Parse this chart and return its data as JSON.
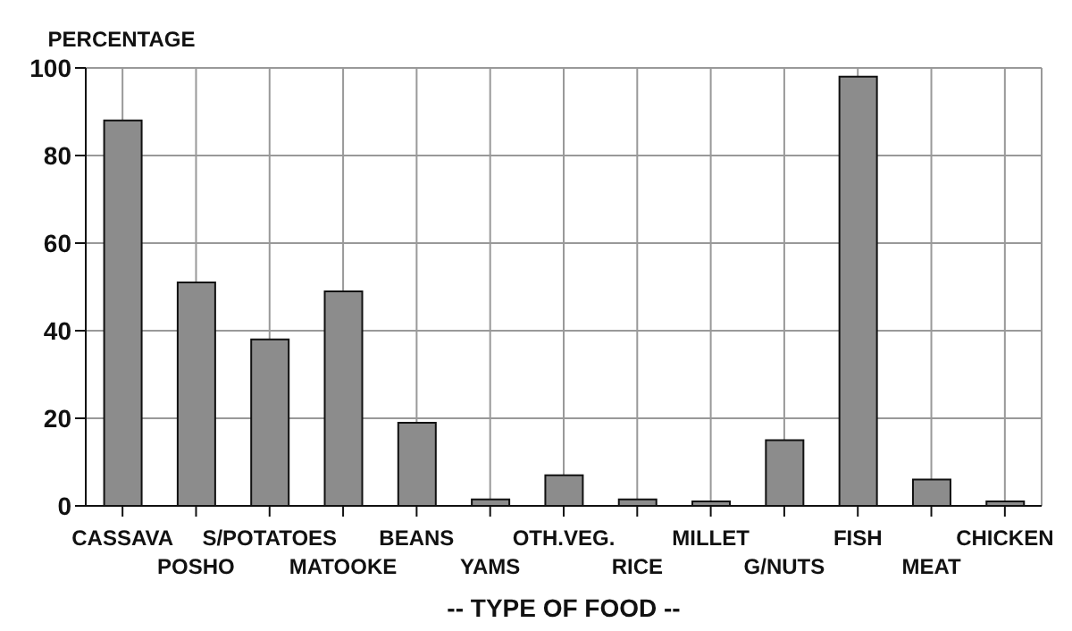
{
  "chart_data": {
    "type": "bar",
    "ylabel": "PERCENTAGE",
    "xlabel": "-- TYPE OF FOOD --",
    "categories": [
      "CASSAVA",
      "POSHO",
      "S/POTATOES",
      "MATOOKE",
      "BEANS",
      "YAMS",
      "OTH.VEG.",
      "RICE",
      "MILLET",
      "G/NUTS",
      "FISH",
      "MEAT",
      "CHICKEN"
    ],
    "values": [
      88,
      51,
      38,
      49,
      19,
      1.5,
      7,
      1.5,
      1,
      15,
      98,
      6,
      1
    ],
    "color": "#8c8c8c",
    "ylim": [
      0,
      100
    ],
    "yticks": [
      0,
      20,
      40,
      60,
      80,
      100
    ],
    "grid": true
  }
}
